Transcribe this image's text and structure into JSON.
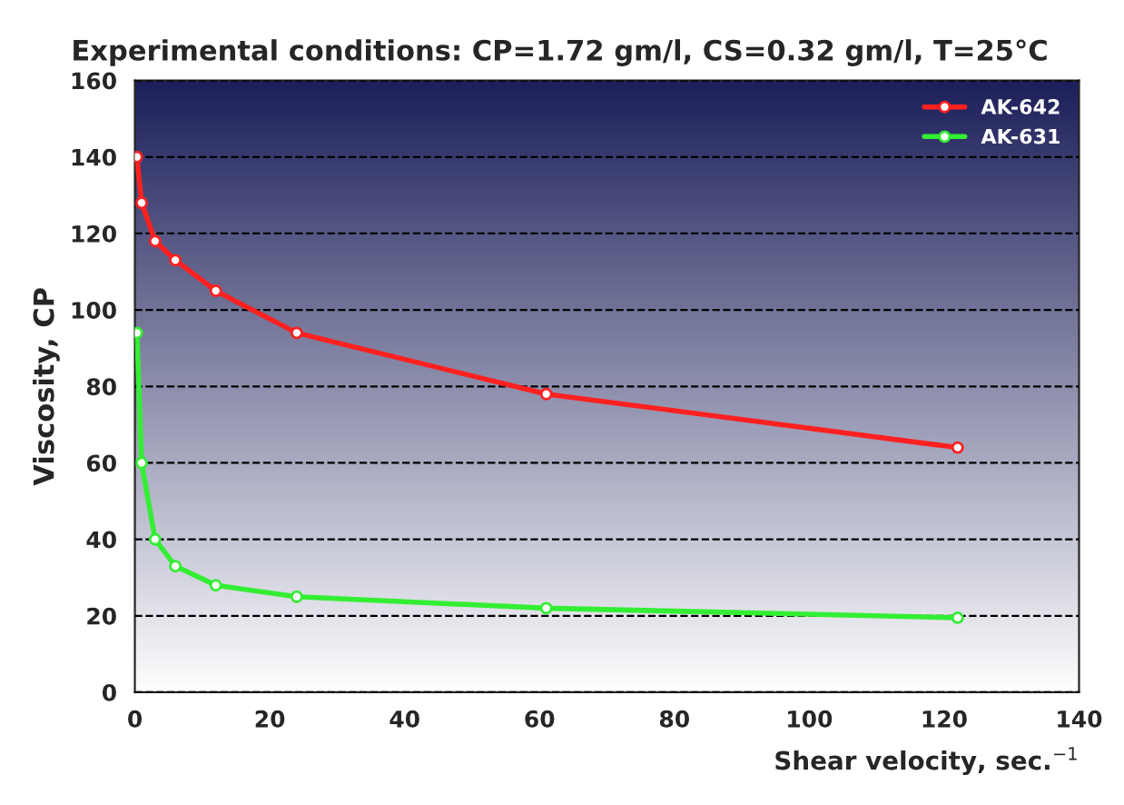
{
  "chart_data": {
    "type": "line",
    "title": "Experimental conditions: CP=1.72 gm/l, CS=0.32 gm/l, T=25°C",
    "xlabel": "Shear velocity, sec.$^{−1}$",
    "ylabel": "Viscosity, CP",
    "series": [
      {
        "name": "AK-642",
        "color": "#ff2020",
        "x": [
          0.3,
          1,
          3,
          6,
          12,
          24,
          61,
          122
        ],
        "values": [
          140,
          128,
          118,
          113,
          105,
          94,
          78,
          64
        ]
      },
      {
        "name": "AK-631",
        "color": "#33ee33",
        "x": [
          0.3,
          1,
          3,
          6,
          12,
          24,
          61,
          122
        ],
        "values": [
          94,
          60,
          40,
          33,
          28,
          25,
          22,
          19.5
        ]
      }
    ],
    "xlim": [
      0,
      140
    ],
    "xticks": [
      0,
      20,
      40,
      60,
      80,
      100,
      120,
      140
    ],
    "ylim": [
      0,
      160
    ],
    "yticks": [
      0,
      20,
      40,
      60,
      80,
      100,
      120,
      140,
      160
    ],
    "grid": "y",
    "legend": "top right",
    "marker": "circle",
    "line_style": "solid"
  }
}
